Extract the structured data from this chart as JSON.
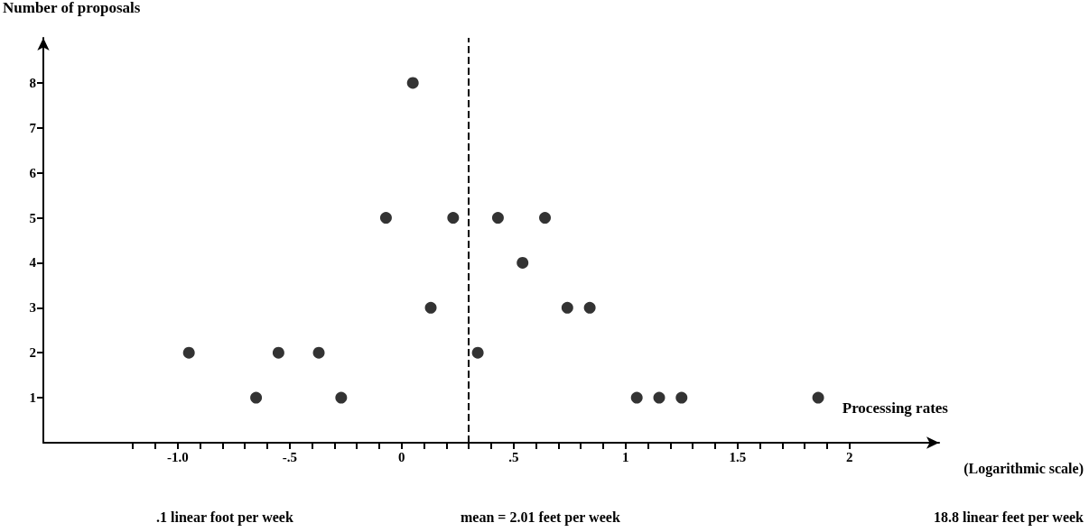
{
  "chart_data": {
    "type": "scatter",
    "ylabel": "Number of proposals",
    "xlabel": "Processing rates",
    "x": [
      -0.95,
      -0.65,
      -0.55,
      -0.37,
      -0.27,
      -0.07,
      0.05,
      0.13,
      0.23,
      0.34,
      0.43,
      0.54,
      0.64,
      0.74,
      0.84,
      1.05,
      1.15,
      1.25,
      1.86
    ],
    "values": [
      2,
      1,
      2,
      2,
      1,
      5,
      8,
      3,
      5,
      2,
      5,
      4,
      5,
      3,
      3,
      1,
      1,
      1,
      1
    ],
    "color": "#000000",
    "marker": "circle",
    "grid": false,
    "xlim": [
      -1.6,
      2.4
    ],
    "ylim": [
      0,
      9
    ],
    "xticks": [
      {
        "value": -1.2,
        "label": null
      },
      {
        "value": -1.1,
        "label": null
      },
      {
        "value": -1,
        "label": "-1.0"
      },
      {
        "value": -0.9,
        "label": null
      },
      {
        "value": -0.8,
        "label": null
      },
      {
        "value": -0.7,
        "label": null
      },
      {
        "value": -0.6,
        "label": null
      },
      {
        "value": -0.5,
        "label": "-.5"
      },
      {
        "value": -0.4,
        "label": null
      },
      {
        "value": -0.3,
        "label": null
      },
      {
        "value": -0.2,
        "label": null
      },
      {
        "value": -0.1,
        "label": null
      },
      0,
      {
        "value": 0.1,
        "label": null
      },
      {
        "value": 0.2,
        "label": null
      },
      {
        "value": 0.3,
        "label": null
      },
      {
        "value": 0.4,
        "label": null
      },
      {
        "value": 0.5,
        "label": ".5"
      },
      {
        "value": 0.6,
        "label": null
      },
      {
        "value": 0.7,
        "label": null
      },
      {
        "value": 0.8,
        "label": null
      },
      {
        "value": 0.9,
        "label": null
      },
      1,
      {
        "value": 1.1,
        "label": null
      },
      {
        "value": 1.2,
        "label": null
      },
      {
        "value": 1.3,
        "label": null
      },
      {
        "value": 1.4,
        "label": null
      },
      1.5,
      {
        "value": 1.6,
        "label": null
      },
      {
        "value": 1.7,
        "label": null
      },
      {
        "value": 1.8,
        "label": null
      },
      {
        "value": 1.9,
        "label": null
      },
      2
    ],
    "yticks": [
      1,
      2,
      3,
      4,
      5,
      6,
      7,
      8
    ],
    "ref_lines": [
      {
        "axis": "x",
        "value": 0.3,
        "color": "#000000",
        "line_style": "dashed"
      }
    ],
    "annotations": [
      ".1 linear foot per week",
      "mean = 2.01 feet per week",
      "18.8 linear feet per week",
      "(Logarithmic scale)"
    ]
  }
}
